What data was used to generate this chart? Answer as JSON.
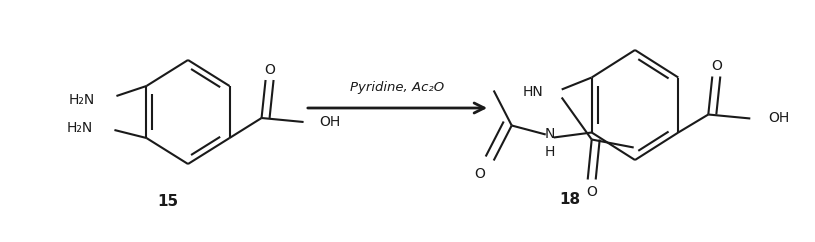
{
  "background_color": "#ffffff",
  "figsize": [
    8.15,
    2.42
  ],
  "dpi": 100,
  "arrow_text": "Pyridine, Ac₂O",
  "compound15_label": "15",
  "compound18_label": "18",
  "line_color": "#1a1a1a",
  "line_width": 1.5,
  "font_size_label": 11,
  "font_size_group": 9,
  "font_size_arrow": 9.5
}
